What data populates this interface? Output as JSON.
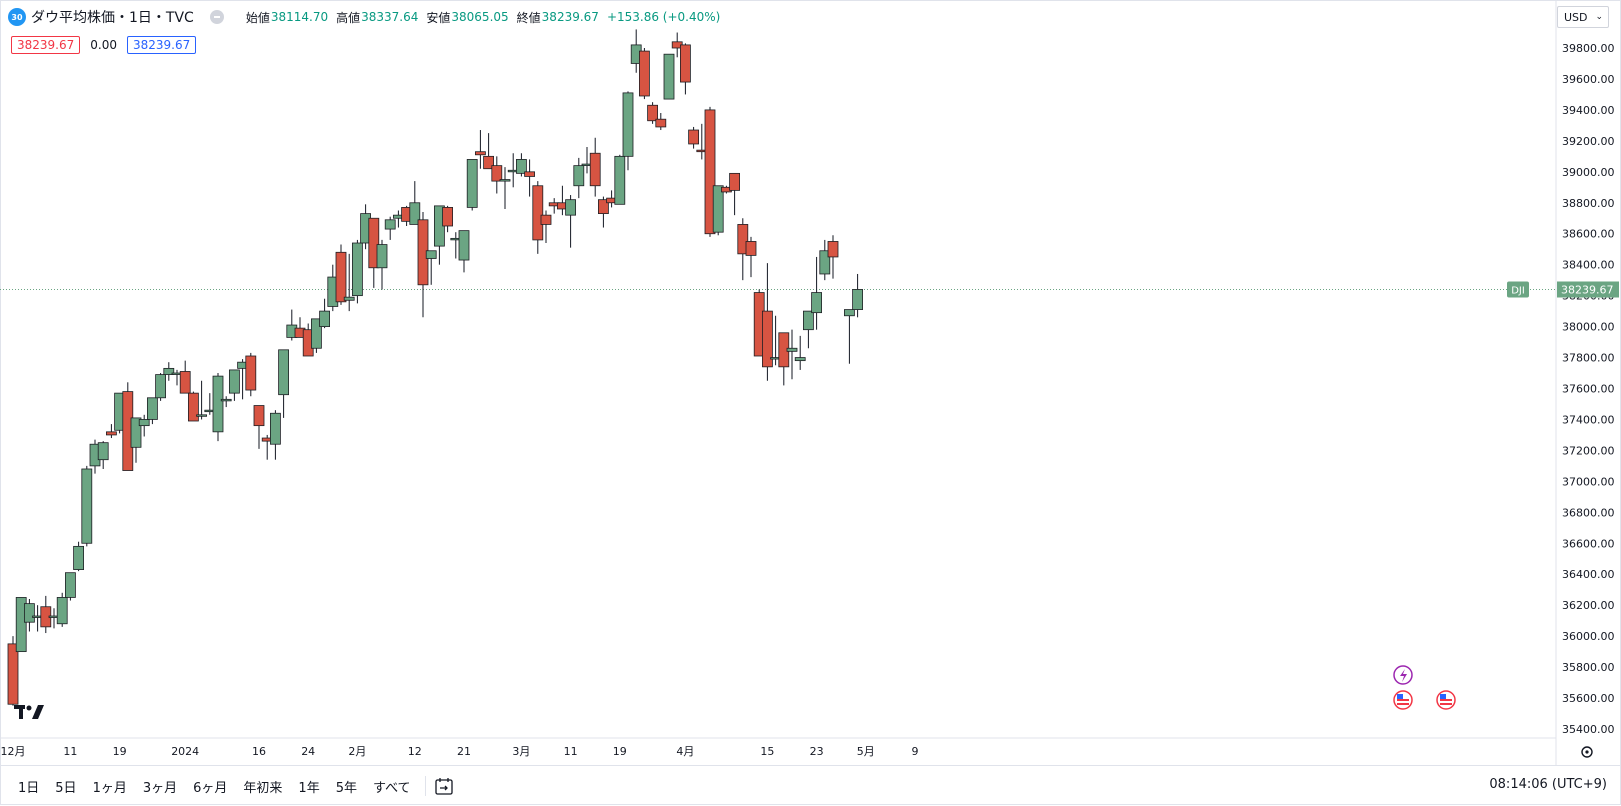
{
  "header": {
    "badge": "30",
    "symbol": "ダウ平均株価・1日・TVC",
    "open_label": "始値",
    "open": "38114.70",
    "high_label": "高値",
    "high": "38337.64",
    "low_label": "安値",
    "low": "38065.05",
    "close_label": "終値",
    "close": "38239.67",
    "change": "+153.86 (+0.40%)"
  },
  "quote": {
    "bid": "38239.67",
    "spread": "0.00",
    "ask": "38239.67"
  },
  "currency": "USD",
  "range_buttons": [
    "1日",
    "5日",
    "1ヶ月",
    "3ヶ月",
    "6ヶ月",
    "年初来",
    "1年",
    "5年",
    "すべて"
  ],
  "clock": "08:14:06 (UTC+9)",
  "colors": {
    "up": "#6ba583",
    "down": "#d75442",
    "up_border": "#225437",
    "down_border": "#5b1a13",
    "grid": "#f0f3fa",
    "accent": "#6ba583"
  },
  "chart_data": {
    "type": "candlestick",
    "series_label": "DJI",
    "last_price": 38239.67,
    "ylim": [
      35400,
      39900
    ],
    "y_ticks": [
      "35400.00",
      "35600.00",
      "35800.00",
      "36000.00",
      "36200.00",
      "36400.00",
      "36600.00",
      "36800.00",
      "37000.00",
      "37200.00",
      "37400.00",
      "37600.00",
      "37800.00",
      "38000.00",
      "38200.00",
      "38400.00",
      "38600.00",
      "38800.00",
      "39000.00",
      "39200.00",
      "39400.00",
      "39600.00",
      "39800.00"
    ],
    "x_ticks": [
      {
        "label": "12月",
        "i": 0
      },
      {
        "label": "11",
        "i": 7
      },
      {
        "label": "19",
        "i": 13
      },
      {
        "label": "2024",
        "i": 21
      },
      {
        "label": "16",
        "i": 30
      },
      {
        "label": "24",
        "i": 36
      },
      {
        "label": "2月",
        "i": 42
      },
      {
        "label": "12",
        "i": 49
      },
      {
        "label": "21",
        "i": 55
      },
      {
        "label": "3月",
        "i": 62
      },
      {
        "label": "11",
        "i": 68
      },
      {
        "label": "19",
        "i": 74
      },
      {
        "label": "4月",
        "i": 82
      },
      {
        "label": "15",
        "i": 92
      },
      {
        "label": "23",
        "i": 98
      },
      {
        "label": "5月",
        "i": 104
      },
      {
        "label": "9",
        "i": 110
      }
    ],
    "candles": [
      [
        35950,
        36000,
        35550,
        35560
      ],
      [
        35900,
        36250,
        35900,
        36250
      ],
      [
        36090,
        36240,
        36030,
        36210
      ],
      [
        36130,
        36200,
        36030,
        36130
      ],
      [
        36190,
        36260,
        36020,
        36060
      ],
      [
        36130,
        36180,
        36050,
        36130
      ],
      [
        36080,
        36280,
        36060,
        36250
      ],
      [
        36250,
        36410,
        36230,
        36410
      ],
      [
        36430,
        36610,
        36420,
        36580
      ],
      [
        36600,
        37100,
        36580,
        37080
      ],
      [
        37100,
        37270,
        37050,
        37240
      ],
      [
        37140,
        37260,
        37080,
        37250
      ],
      [
        37320,
        37370,
        37280,
        37300
      ],
      [
        37330,
        37570,
        37310,
        37570
      ],
      [
        37580,
        37640,
        37070,
        37070
      ],
      [
        37220,
        37410,
        37120,
        37410
      ],
      [
        37360,
        37430,
        37290,
        37400
      ],
      [
        37400,
        37470,
        37370,
        37540
      ],
      [
        37540,
        37700,
        37520,
        37690
      ],
      [
        37690,
        37770,
        37650,
        37730
      ],
      [
        37700,
        37720,
        37620,
        37700
      ],
      [
        37710,
        37780,
        37600,
        37570
      ],
      [
        37570,
        37580,
        37390,
        37390
      ],
      [
        37430,
        37650,
        37400,
        37430
      ],
      [
        37460,
        37570,
        37430,
        37460
      ],
      [
        37320,
        37700,
        37260,
        37680
      ],
      [
        37520,
        37550,
        37480,
        37530
      ],
      [
        37570,
        37710,
        37520,
        37720
      ],
      [
        37730,
        37790,
        37530,
        37770
      ],
      [
        37810,
        37830,
        37550,
        37590
      ],
      [
        37490,
        37490,
        37210,
        37360
      ],
      [
        37280,
        37300,
        37140,
        37260
      ],
      [
        37240,
        37460,
        37140,
        37440
      ],
      [
        37560,
        37600,
        37410,
        37850
      ],
      [
        37930,
        38110,
        37910,
        38010
      ],
      [
        37990,
        38060,
        37930,
        37930
      ],
      [
        37980,
        38020,
        37830,
        37810
      ],
      [
        37860,
        38030,
        37830,
        38050
      ],
      [
        38000,
        38180,
        37990,
        38100
      ],
      [
        38130,
        38400,
        38100,
        38320
      ],
      [
        38480,
        38530,
        38140,
        38160
      ],
      [
        38170,
        38470,
        38100,
        38190
      ],
      [
        38200,
        38560,
        38150,
        38540
      ],
      [
        38540,
        38790,
        38500,
        38730
      ],
      [
        38700,
        38630,
        38250,
        38380
      ],
      [
        38380,
        38560,
        38240,
        38530
      ],
      [
        38630,
        38710,
        38560,
        38690
      ],
      [
        38700,
        38750,
        38640,
        38720
      ],
      [
        38770,
        38780,
        38650,
        38680
      ],
      [
        38660,
        38940,
        38680,
        38800
      ],
      [
        38690,
        38740,
        38060,
        38270
      ],
      [
        38440,
        38490,
        38270,
        38490
      ],
      [
        38520,
        38760,
        38400,
        38780
      ],
      [
        38770,
        38780,
        38610,
        38650
      ],
      [
        38570,
        38610,
        38440,
        38570
      ],
      [
        38430,
        38610,
        38350,
        38620
      ],
      [
        38770,
        39050,
        38750,
        39080
      ],
      [
        39130,
        39270,
        39020,
        39110
      ],
      [
        39100,
        39250,
        39030,
        39020
      ],
      [
        39040,
        39100,
        38860,
        38940
      ],
      [
        38940,
        39030,
        38760,
        38950
      ],
      [
        39000,
        39120,
        38900,
        39010
      ],
      [
        38990,
        39120,
        38970,
        39080
      ],
      [
        39000,
        39080,
        38840,
        38970
      ],
      [
        38910,
        38940,
        38470,
        38560
      ],
      [
        38720,
        38750,
        38540,
        38660
      ],
      [
        38800,
        38830,
        38730,
        38780
      ],
      [
        38800,
        38910,
        38720,
        38760
      ],
      [
        38720,
        38850,
        38510,
        38820
      ],
      [
        38910,
        39090,
        38830,
        39040
      ],
      [
        39050,
        39160,
        38990,
        39050
      ],
      [
        39120,
        39220,
        38840,
        38910
      ],
      [
        38820,
        38840,
        38640,
        38730
      ],
      [
        38830,
        38880,
        38770,
        38800
      ],
      [
        38790,
        39110,
        38800,
        39100
      ],
      [
        39100,
        39520,
        39010,
        39510
      ],
      [
        39700,
        39920,
        39640,
        39820
      ],
      [
        39780,
        39800,
        39470,
        39490
      ],
      [
        39430,
        39450,
        39310,
        39330
      ],
      [
        39340,
        39380,
        39270,
        39290
      ],
      [
        39470,
        39460,
        39460,
        39760
      ],
      [
        39840,
        39900,
        39740,
        39800
      ],
      [
        39820,
        39830,
        39500,
        39580
      ],
      [
        39270,
        39290,
        39150,
        39180
      ],
      [
        39140,
        39310,
        39080,
        39130
      ],
      [
        39400,
        39420,
        38580,
        38600
      ],
      [
        38610,
        38640,
        38590,
        38910
      ],
      [
        38900,
        38910,
        38860,
        38870
      ],
      [
        38990,
        38970,
        38720,
        38880
      ],
      [
        38660,
        38700,
        38300,
        38470
      ],
      [
        38550,
        38580,
        38320,
        38460
      ],
      [
        38220,
        38240,
        37850,
        37810
      ],
      [
        38100,
        38410,
        37650,
        37740
      ],
      [
        37800,
        38070,
        37750,
        37800
      ],
      [
        37960,
        37860,
        37620,
        37740
      ],
      [
        37840,
        37980,
        37660,
        37860
      ],
      [
        37780,
        37940,
        37720,
        37800
      ],
      [
        37980,
        38090,
        37860,
        38100
      ],
      [
        38090,
        38450,
        37980,
        38220
      ],
      [
        38340,
        38560,
        38300,
        38490
      ],
      [
        38550,
        38590,
        38310,
        38450
      ],
      [
        null,
        null,
        null,
        null
      ],
      [
        38070,
        38100,
        37760,
        38110
      ],
      [
        38110,
        38340,
        38060,
        38240
      ]
    ]
  }
}
